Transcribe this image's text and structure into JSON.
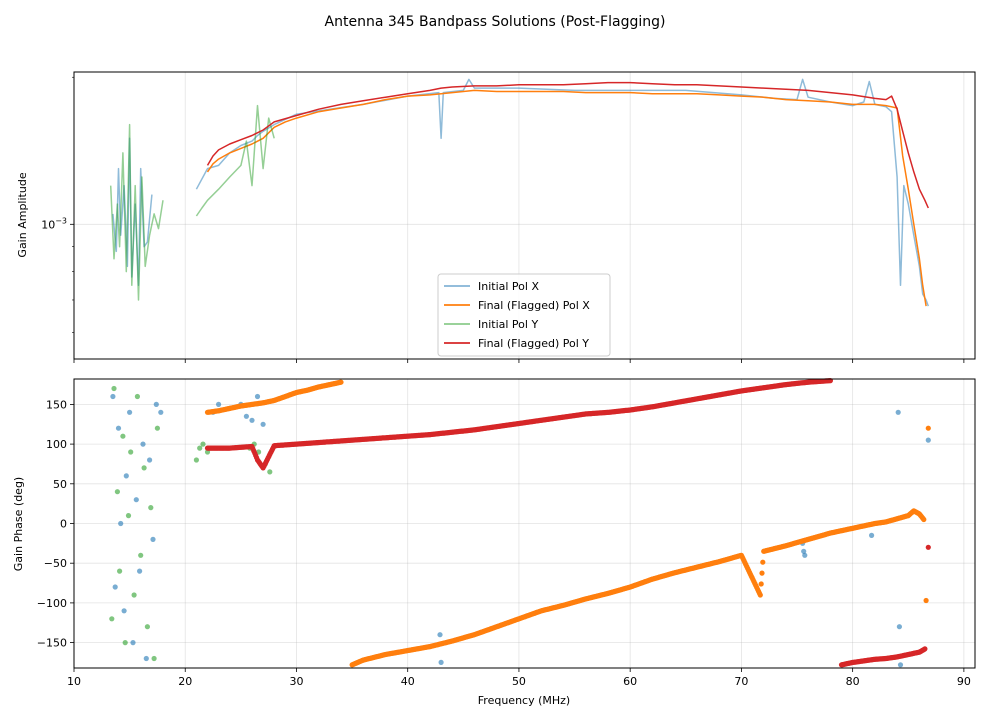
{
  "figure_title": "Antenna 345 Bandpass Solutions (Post-Flagging)",
  "colors": {
    "initial_x": "#1f77b4",
    "final_x": "#ff7f0e",
    "initial_y": "#2ca02c",
    "final_y": "#d62728"
  },
  "chart_data": [
    {
      "type": "line",
      "panel": "amplitude",
      "title": "",
      "xlabel": "",
      "ylabel": "Gain Amplitude",
      "yscale": "log",
      "xlim": [
        10,
        91
      ],
      "ylim": [
        0.00053,
        0.00205
      ],
      "yticks": [
        {
          "value": 0.001,
          "label": "10^-3"
        }
      ],
      "grid": true,
      "legend_location": "lower-center",
      "legend": [
        "Initial Pol X",
        "Final (Flagged) Pol X",
        "Initial Pol Y",
        "Final (Flagged) Pol Y"
      ],
      "series": [
        {
          "name": "Initial Pol X",
          "color": "#1f77b4",
          "x": [
            13.5,
            13.8,
            14.0,
            14.2,
            14.5,
            14.8,
            15.0,
            15.2,
            15.5,
            15.8,
            16.0,
            16.3,
            16.6,
            17.0,
            null,
            21.0,
            22.0,
            23.0,
            24.0,
            25.0,
            26.0,
            26.5,
            27.0,
            28.0,
            30.0,
            33.0,
            36.0,
            40.0,
            42.8,
            43.0,
            43.2,
            45.0,
            45.5,
            46.0,
            50.0,
            55.0,
            60.0,
            65.0,
            70.0,
            73.0,
            75.0,
            75.5,
            76.0,
            78.0,
            80.0,
            81.0,
            81.5,
            82.0,
            83.0,
            83.5,
            84.0,
            84.3,
            84.6,
            85.0,
            85.5,
            86.0,
            86.3,
            86.6,
            86.8
          ],
          "y": [
            0.00105,
            0.00088,
            0.0013,
            0.00095,
            0.0012,
            0.00082,
            0.0015,
            0.00078,
            0.0011,
            0.00075,
            0.0013,
            0.0009,
            0.00092,
            0.00115,
            null,
            0.00118,
            0.0013,
            0.00132,
            0.0014,
            0.00145,
            0.00148,
            0.00152,
            0.00155,
            0.0016,
            0.00168,
            0.00172,
            0.00176,
            0.00183,
            0.00186,
            0.0015,
            0.00186,
            0.00188,
            0.00198,
            0.0019,
            0.0019,
            0.00188,
            0.00188,
            0.00188,
            0.00184,
            0.00181,
            0.0018,
            0.00198,
            0.00182,
            0.00178,
            0.00175,
            0.00178,
            0.00196,
            0.00176,
            0.00174,
            0.0017,
            0.00125,
            0.00075,
            0.0012,
            0.0011,
            0.00095,
            0.00082,
            0.00072,
            0.0007,
            0.00068
          ]
        },
        {
          "name": "Final (Flagged) Pol X",
          "color": "#ff7f0e",
          "x": [
            22.0,
            22.5,
            23.0,
            24.0,
            25.0,
            26.0,
            27.0,
            28.0,
            29.0,
            30.0,
            32.0,
            34.0,
            36.0,
            38.0,
            40.0,
            42.0,
            44.0,
            46.0,
            48.0,
            50.0,
            52.0,
            54.0,
            56.0,
            58.0,
            60.0,
            62.0,
            64.0,
            66.0,
            68.0,
            70.0,
            72.0,
            74.0,
            76.0,
            78.0,
            80.0,
            82.0,
            83.0,
            84.0,
            84.5,
            85.0,
            85.5,
            86.0,
            86.3,
            86.6
          ],
          "y": [
            0.00128,
            0.00133,
            0.00136,
            0.0014,
            0.00143,
            0.00146,
            0.0015,
            0.00158,
            0.00162,
            0.00165,
            0.0017,
            0.00173,
            0.00176,
            0.0018,
            0.00183,
            0.00184,
            0.00186,
            0.00188,
            0.00187,
            0.00187,
            0.00187,
            0.00187,
            0.00186,
            0.00186,
            0.00186,
            0.00185,
            0.00185,
            0.00185,
            0.00184,
            0.00183,
            0.00182,
            0.0018,
            0.00179,
            0.00178,
            0.00176,
            0.00176,
            0.00175,
            0.00173,
            0.00138,
            0.00118,
            0.001,
            0.00085,
            0.00075,
            0.00068
          ]
        },
        {
          "name": "Initial Pol Y",
          "color": "#2ca02c",
          "x": [
            13.3,
            13.6,
            13.9,
            14.1,
            14.4,
            14.7,
            15.0,
            15.2,
            15.5,
            15.8,
            16.1,
            16.4,
            16.8,
            17.2,
            17.6,
            18.0,
            null,
            21.0,
            21.5,
            22.0,
            23.0,
            24.0,
            25.0,
            25.5,
            26.0,
            26.5,
            27.0,
            27.5,
            28.0
          ],
          "y": [
            0.0012,
            0.00085,
            0.0011,
            0.0009,
            0.0014,
            0.0008,
            0.0016,
            0.00075,
            0.0012,
            0.0007,
            0.00125,
            0.00082,
            0.00095,
            0.00105,
            0.00098,
            0.00112,
            null,
            0.00104,
            0.00108,
            0.00112,
            0.00118,
            0.00125,
            0.00132,
            0.00148,
            0.0012,
            0.00175,
            0.0013,
            0.00165,
            0.0015
          ]
        },
        {
          "name": "Final (Flagged) Pol Y",
          "color": "#d62728",
          "x": [
            22.0,
            22.5,
            23.0,
            24.0,
            25.0,
            26.0,
            27.0,
            28.0,
            30.0,
            32.0,
            34.0,
            36.0,
            38.0,
            40.0,
            42.0,
            43.0,
            44.0,
            46.0,
            48.0,
            50.0,
            52.0,
            54.0,
            56.0,
            58.0,
            60.0,
            62.0,
            64.0,
            66.0,
            68.0,
            70.0,
            72.0,
            74.0,
            76.0,
            78.0,
            80.0,
            82.0,
            83.0,
            83.5,
            84.0,
            84.5,
            85.0,
            85.5,
            86.0,
            86.5,
            86.8
          ],
          "y": [
            0.00132,
            0.00138,
            0.00142,
            0.00146,
            0.00149,
            0.00152,
            0.00156,
            0.00162,
            0.00167,
            0.00172,
            0.00176,
            0.00179,
            0.00182,
            0.00185,
            0.00188,
            0.0019,
            0.00191,
            0.00192,
            0.00192,
            0.00193,
            0.00193,
            0.00193,
            0.00194,
            0.00195,
            0.00195,
            0.00194,
            0.00193,
            0.00193,
            0.00192,
            0.00191,
            0.0019,
            0.00189,
            0.00188,
            0.00186,
            0.00184,
            0.00181,
            0.0018,
            0.00183,
            0.00172,
            0.00155,
            0.0014,
            0.00128,
            0.00118,
            0.00112,
            0.00108
          ]
        }
      ]
    },
    {
      "type": "scatter",
      "panel": "phase",
      "title": "",
      "xlabel": "Frequency (MHz)",
      "ylabel": "Gain Phase (deg)",
      "xlim": [
        10,
        91
      ],
      "ylim": [
        -182,
        182
      ],
      "xticks": [
        10,
        20,
        30,
        40,
        50,
        60,
        70,
        80,
        90
      ],
      "yticks": [
        -150,
        -100,
        -50,
        0,
        50,
        100,
        150
      ],
      "grid": true,
      "series": [
        {
          "name": "Initial Pol X",
          "color": "#1f77b4",
          "x": [
            13.5,
            13.7,
            14.0,
            14.2,
            14.5,
            14.7,
            15.0,
            15.3,
            15.6,
            15.9,
            16.2,
            16.5,
            16.8,
            17.1,
            17.4,
            17.8,
            22.5,
            23.0,
            24.0,
            25.0,
            25.5,
            26.0,
            26.5,
            27.0,
            42.9,
            43.0,
            75.5,
            75.6,
            75.7,
            81.7,
            84.1,
            84.2,
            84.3,
            86.8
          ],
          "y": [
            160,
            -80,
            120,
            0,
            -110,
            60,
            140,
            -150,
            30,
            -60,
            100,
            -170,
            80,
            -20,
            150,
            140,
            140,
            150,
            145,
            150,
            135,
            130,
            160,
            125,
            -140,
            -175,
            -25,
            -35,
            -40,
            -15,
            140,
            -130,
            -178,
            105
          ]
        },
        {
          "name": "Final (Flagged) Pol X",
          "color": "#ff7f0e",
          "x": [
            22.0,
            23.0,
            24.0,
            25.0,
            26.0,
            27.0,
            28.0,
            29.0,
            30.0,
            31.0,
            32.0,
            33.0,
            34.0,
            35.0,
            36.0,
            38.0,
            40.0,
            42.0,
            44.0,
            46.0,
            48.0,
            50.0,
            52.0,
            54.0,
            56.0,
            58.0,
            60.0,
            62.0,
            64.0,
            66.0,
            68.0,
            70.0,
            71.7,
            72.0,
            74.0,
            76.0,
            78.0,
            80.0,
            82.0,
            83.0,
            84.0,
            85.0,
            85.5,
            86.0,
            86.4,
            86.6,
            86.8
          ],
          "y": [
            140,
            142,
            145,
            148,
            150,
            152,
            155,
            160,
            165,
            168,
            172,
            175,
            178,
            -178,
            -172,
            -165,
            -160,
            -155,
            -148,
            -140,
            -130,
            -120,
            -110,
            -103,
            -95,
            -88,
            -80,
            -70,
            -62,
            -55,
            -48,
            -40,
            -90,
            -35,
            -28,
            -20,
            -12,
            -6,
            0,
            2,
            6,
            10,
            16,
            12,
            5,
            -97,
            120
          ]
        },
        {
          "name": "Initial Pol Y",
          "color": "#2ca02c",
          "x": [
            13.4,
            13.6,
            13.9,
            14.1,
            14.4,
            14.6,
            14.9,
            15.1,
            15.4,
            15.7,
            16.0,
            16.3,
            16.6,
            16.9,
            17.2,
            17.5,
            21.0,
            21.3,
            21.6,
            22.0,
            25.8,
            26.2,
            26.6,
            27.2,
            27.6
          ],
          "y": [
            -120,
            170,
            40,
            -60,
            110,
            -150,
            10,
            90,
            -90,
            160,
            -40,
            70,
            -130,
            20,
            -170,
            120,
            80,
            95,
            100,
            90,
            95,
            100,
            90,
            75,
            65
          ]
        },
        {
          "name": "Final (Flagged) Pol Y",
          "color": "#d62728",
          "x": [
            22.0,
            23.0,
            24.0,
            25.0,
            26.0,
            26.5,
            27.0,
            28.0,
            30.0,
            32.0,
            34.0,
            36.0,
            38.0,
            40.0,
            42.0,
            44.0,
            46.0,
            48.0,
            50.0,
            52.0,
            54.0,
            56.0,
            58.0,
            60.0,
            62.0,
            64.0,
            66.0,
            68.0,
            70.0,
            72.0,
            74.0,
            76.0,
            78.0,
            79.0,
            80.0,
            81.0,
            82.0,
            83.0,
            84.0,
            85.0,
            86.0,
            86.5,
            86.8
          ],
          "y": [
            95,
            95,
            95,
            96,
            97,
            80,
            70,
            98,
            100,
            102,
            104,
            106,
            108,
            110,
            112,
            115,
            118,
            122,
            126,
            130,
            134,
            138,
            140,
            143,
            147,
            152,
            157,
            162,
            167,
            171,
            175,
            178,
            180,
            -178,
            -175,
            -173,
            -171,
            -170,
            -168,
            -165,
            -162,
            -158,
            -30
          ]
        }
      ]
    }
  ]
}
